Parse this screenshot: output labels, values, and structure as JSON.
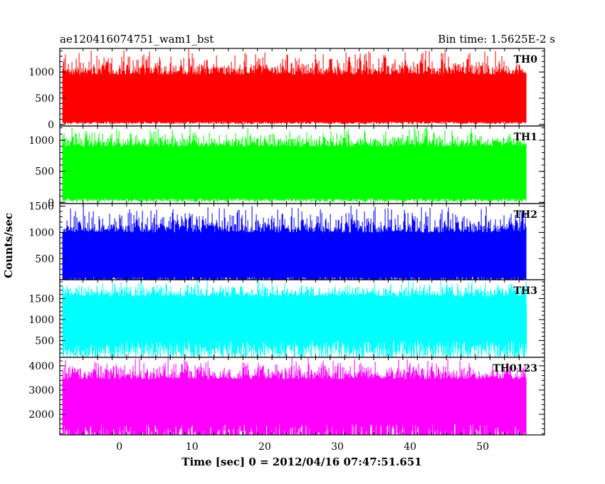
{
  "header": {
    "left_title": "ae120416074751_wam1_bst",
    "right_title": "Bin time: 1.5625E-2 s"
  },
  "chart_data": {
    "type": "line",
    "xlabel": "Time [sec] 0 = 2012/04/16 07:47:51.651",
    "ylabel": "Counts/sec",
    "xlim": [
      -8.2,
      58.5
    ],
    "xticks": [
      0,
      10,
      20,
      30,
      40,
      50
    ],
    "data_x_range": [
      -7.8,
      56
    ],
    "panels": [
      {
        "name": "TH0",
        "color": "#ff0000",
        "ylim": [
          -30,
          1450
        ],
        "yticks": [
          0,
          500,
          1000
        ],
        "base_low": 50,
        "base_high": 950,
        "spike_max": 1450
      },
      {
        "name": "TH1",
        "color": "#00ff00",
        "ylim": [
          -20,
          1230
        ],
        "yticks": [
          0,
          500,
          1000
        ],
        "base_low": 60,
        "base_high": 900,
        "spike_max": 1230
      },
      {
        "name": "TH2",
        "color": "#0000ff",
        "ylim": [
          100,
          1550
        ],
        "yticks": [
          500,
          1000,
          1500
        ],
        "base_low": 140,
        "base_high": 1000,
        "spike_max": 1550
      },
      {
        "name": "TH3",
        "color": "#00ffff",
        "ylim": [
          100,
          1950
        ],
        "yticks": [
          500,
          1000,
          1500
        ],
        "base_low": 450,
        "base_high": 1550,
        "spike_max": 1950
      },
      {
        "name": "TH0123",
        "color": "#ff00ff",
        "ylim": [
          1150,
          4350
        ],
        "yticks": [
          2000,
          3000,
          4000
        ],
        "base_low": 1450,
        "base_high": 3450,
        "spike_max": 4350
      }
    ]
  }
}
